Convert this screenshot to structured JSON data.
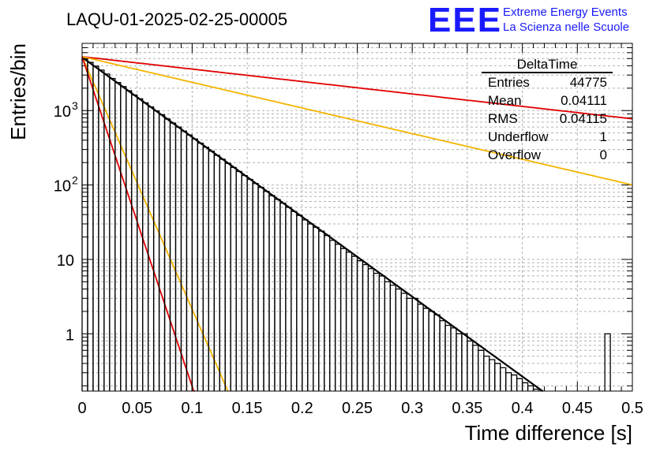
{
  "chart_data": {
    "type": "histogram",
    "title": "LAQU-01-2025-02-25-00005",
    "xlabel": "Time difference [s]",
    "ylabel": "Entries/bin",
    "xlim": [
      0,
      0.5
    ],
    "ylim": [
      0.17,
      8000
    ],
    "yscale": "log",
    "grid": true,
    "x_ticks": [
      {
        "value": 0,
        "label": "0"
      },
      {
        "value": 0.05,
        "label": "0.05"
      },
      {
        "value": 0.1,
        "label": "0.1"
      },
      {
        "value": 0.15,
        "label": "0.15"
      },
      {
        "value": 0.2,
        "label": "0.2"
      },
      {
        "value": 0.25,
        "label": "0.25"
      },
      {
        "value": 0.3,
        "label": "0.3"
      },
      {
        "value": 0.35,
        "label": "0.35"
      },
      {
        "value": 0.4,
        "label": "0.4"
      },
      {
        "value": 0.45,
        "label": "0.45"
      },
      {
        "value": 0.5,
        "label": "0.5"
      }
    ],
    "y_ticks": [
      {
        "value": 1,
        "label": "1"
      },
      {
        "value": 10,
        "label": "10"
      },
      {
        "value": 100,
        "label": "10",
        "exp": "2"
      },
      {
        "value": 1000,
        "label": "10",
        "exp": "3"
      }
    ],
    "histogram": {
      "name": "DeltaTime",
      "bin_width": 0.005,
      "x_start": 0,
      "counts": [
        4950,
        4450,
        3950,
        3500,
        3100,
        2700,
        2380,
        2100,
        1850,
        1620,
        1440,
        1270,
        1120,
        990,
        880,
        770,
        680,
        600,
        530,
        470,
        415,
        365,
        322,
        285,
        250,
        222,
        195,
        172,
        152,
        134,
        119,
        105,
        93,
        82,
        72,
        64,
        57,
        50,
        44,
        39,
        34,
        30,
        27,
        24,
        21,
        18,
        16,
        14,
        12.5,
        11,
        9.6,
        8.5,
        7.5,
        6.5,
        6,
        5,
        4.5,
        4,
        3.5,
        3,
        3,
        2.5,
        2.2,
        2,
        1.8,
        1.5,
        1.3,
        1.2,
        1,
        1,
        0.8,
        0.7,
        0.6,
        0.5,
        0.45,
        0.4,
        0.35,
        0.3,
        0.28,
        0.25,
        0.22,
        0.2,
        0.18,
        0.16,
        0.15,
        0.13,
        0.12,
        0.1,
        0.1,
        0.09,
        0.08,
        0.07,
        0.06,
        0.06,
        0.05,
        1,
        0.05,
        0.05,
        0.04,
        0.04
      ],
      "stats": {
        "title": "DeltaTime",
        "rows": [
          {
            "label": "Entries",
            "value": "44775"
          },
          {
            "label": "Mean",
            "value": "0.04111"
          },
          {
            "label": "RMS",
            "value": "0.04115"
          },
          {
            "label": "Underflow",
            "value": "1"
          },
          {
            "label": "Overflow",
            "value": "0"
          }
        ]
      }
    },
    "series": [
      {
        "name": "fit",
        "color": "#000000",
        "A": 5200,
        "tau": 0.0405
      },
      {
        "name": "reference-slow-red",
        "color": "#e00000",
        "A": 5300,
        "tau": 0.26
      },
      {
        "name": "reference-slow-yellow",
        "color": "#f5b400",
        "A": 5300,
        "tau": 0.126
      },
      {
        "name": "reference-fast-yellow",
        "color": "#f5b400",
        "A": 5300,
        "tau": 0.0128
      },
      {
        "name": "reference-fast-red",
        "color": "#e00000",
        "A": 5300,
        "tau": 0.0098
      }
    ],
    "logo": {
      "text": "EEE",
      "line1": "Extreme Energy Events",
      "line2": "La Scienza nelle Scuole",
      "color": "#1a1aff"
    }
  }
}
